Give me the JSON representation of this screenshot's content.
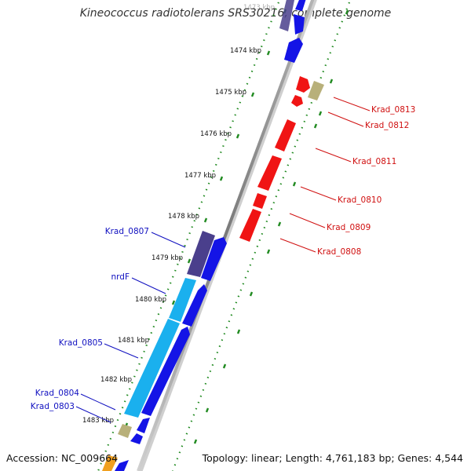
{
  "title": "Kineococcus radiotolerans SRS30216, complete genome",
  "footer": {
    "accession": "Accession: NC_009664",
    "summary": "Topology: linear; Length: 4,761,183 bp; Genes: 4,544"
  },
  "scale_ticks": [
    {
      "label": "1473 kbp",
      "kbp": 1473
    },
    {
      "label": "1474 kbp",
      "kbp": 1474
    },
    {
      "label": "1475 kbp",
      "kbp": 1475
    },
    {
      "label": "1476 kbp",
      "kbp": 1476
    },
    {
      "label": "1477 kbp",
      "kbp": 1477
    },
    {
      "label": "1478 kbp",
      "kbp": 1478
    },
    {
      "label": "1479 kbp",
      "kbp": 1479
    },
    {
      "label": "1480 kbp",
      "kbp": 1480
    },
    {
      "label": "1481 kbp",
      "kbp": 1481
    },
    {
      "label": "1482 kbp",
      "kbp": 1482
    },
    {
      "label": "1483 kbp",
      "kbp": 1483
    }
  ],
  "gene_labels_left": [
    {
      "text": "Krad_0807",
      "color": "#1010c0"
    },
    {
      "text": "nrdF",
      "color": "#1010c0"
    },
    {
      "text": "Krad_0805",
      "color": "#1010c0"
    },
    {
      "text": "Krad_0804",
      "color": "#1010c0"
    },
    {
      "text": "Krad_0803",
      "color": "#1010c0"
    }
  ],
  "gene_labels_right": [
    {
      "text": "Krad_0813",
      "color": "#d01010"
    },
    {
      "text": "Krad_0812",
      "color": "#d01010"
    },
    {
      "text": "Krad_0811",
      "color": "#d01010"
    },
    {
      "text": "Krad_0810",
      "color": "#d01010"
    },
    {
      "text": "Krad_0809",
      "color": "#d01010"
    },
    {
      "text": "Krad_0808",
      "color": "#d01010"
    }
  ],
  "colors": {
    "cds": "#1414e6",
    "cds_reverse": "#f01414",
    "cds_light": "#1ab0ee",
    "cds_dark": "#4a3f8c",
    "other": "#b8b07a",
    "backbone": "#8c8c8c",
    "tick": "#208a20"
  }
}
